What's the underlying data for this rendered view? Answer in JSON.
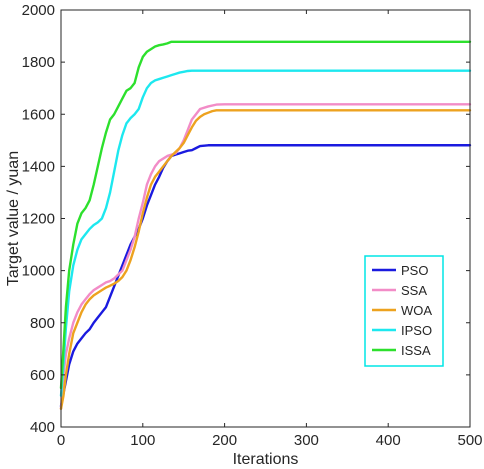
{
  "chart_data": {
    "type": "line",
    "xlabel": "Iterations",
    "ylabel": "Target value / yuan",
    "xlim": [
      0,
      500
    ],
    "ylim": [
      400,
      2000
    ],
    "xticks": [
      "0",
      "100",
      "200",
      "300",
      "400",
      "500"
    ],
    "yticks": [
      "400",
      "600",
      "800",
      "1000",
      "1200",
      "1400",
      "1600",
      "1800",
      "2000"
    ],
    "grid": false,
    "legend_position": "lower-right",
    "legend_border_color": "#00e5e5",
    "series": [
      {
        "name": "PSO",
        "color": "#1a1adf",
        "points": [
          [
            0,
            480
          ],
          [
            5,
            560
          ],
          [
            10,
            640
          ],
          [
            15,
            690
          ],
          [
            20,
            720
          ],
          [
            25,
            740
          ],
          [
            30,
            760
          ],
          [
            35,
            775
          ],
          [
            40,
            800
          ],
          [
            45,
            820
          ],
          [
            50,
            840
          ],
          [
            55,
            860
          ],
          [
            60,
            900
          ],
          [
            65,
            940
          ],
          [
            70,
            980
          ],
          [
            75,
            1020
          ],
          [
            80,
            1060
          ],
          [
            85,
            1100
          ],
          [
            90,
            1130
          ],
          [
            95,
            1160
          ],
          [
            100,
            1200
          ],
          [
            105,
            1250
          ],
          [
            110,
            1290
          ],
          [
            115,
            1330
          ],
          [
            120,
            1360
          ],
          [
            125,
            1395
          ],
          [
            130,
            1420
          ],
          [
            135,
            1440
          ],
          [
            140,
            1445
          ],
          [
            145,
            1450
          ],
          [
            150,
            1455
          ],
          [
            155,
            1460
          ],
          [
            160,
            1462
          ],
          [
            165,
            1470
          ],
          [
            170,
            1478
          ],
          [
            180,
            1481
          ],
          [
            200,
            1481
          ],
          [
            300,
            1481
          ],
          [
            400,
            1481
          ],
          [
            500,
            1481
          ]
        ]
      },
      {
        "name": "SSA",
        "color": "#f28cc7",
        "points": [
          [
            0,
            470
          ],
          [
            3,
            600
          ],
          [
            6,
            680
          ],
          [
            10,
            740
          ],
          [
            15,
            800
          ],
          [
            20,
            840
          ],
          [
            25,
            870
          ],
          [
            30,
            890
          ],
          [
            35,
            910
          ],
          [
            40,
            925
          ],
          [
            45,
            935
          ],
          [
            50,
            945
          ],
          [
            55,
            955
          ],
          [
            60,
            960
          ],
          [
            65,
            970
          ],
          [
            70,
            985
          ],
          [
            75,
            1000
          ],
          [
            80,
            1040
          ],
          [
            85,
            1080
          ],
          [
            90,
            1130
          ],
          [
            95,
            1200
          ],
          [
            100,
            1260
          ],
          [
            105,
            1330
          ],
          [
            110,
            1370
          ],
          [
            115,
            1400
          ],
          [
            120,
            1420
          ],
          [
            125,
            1430
          ],
          [
            130,
            1440
          ],
          [
            135,
            1445
          ],
          [
            140,
            1450
          ],
          [
            145,
            1470
          ],
          [
            150,
            1500
          ],
          [
            155,
            1540
          ],
          [
            160,
            1580
          ],
          [
            165,
            1600
          ],
          [
            170,
            1620
          ],
          [
            180,
            1630
          ],
          [
            190,
            1637
          ],
          [
            200,
            1638
          ],
          [
            300,
            1638
          ],
          [
            400,
            1638
          ],
          [
            500,
            1638
          ]
        ]
      },
      {
        "name": "WOA",
        "color": "#eda21f",
        "points": [
          [
            0,
            470
          ],
          [
            3,
            520
          ],
          [
            6,
            600
          ],
          [
            10,
            680
          ],
          [
            15,
            760
          ],
          [
            20,
            800
          ],
          [
            25,
            840
          ],
          [
            30,
            870
          ],
          [
            35,
            890
          ],
          [
            40,
            905
          ],
          [
            45,
            915
          ],
          [
            50,
            925
          ],
          [
            55,
            935
          ],
          [
            60,
            942
          ],
          [
            65,
            950
          ],
          [
            70,
            960
          ],
          [
            75,
            975
          ],
          [
            80,
            1000
          ],
          [
            85,
            1040
          ],
          [
            90,
            1090
          ],
          [
            95,
            1150
          ],
          [
            100,
            1220
          ],
          [
            105,
            1280
          ],
          [
            110,
            1330
          ],
          [
            115,
            1360
          ],
          [
            120,
            1380
          ],
          [
            125,
            1400
          ],
          [
            130,
            1420
          ],
          [
            135,
            1440
          ],
          [
            140,
            1455
          ],
          [
            145,
            1470
          ],
          [
            150,
            1490
          ],
          [
            155,
            1520
          ],
          [
            160,
            1550
          ],
          [
            165,
            1575
          ],
          [
            170,
            1590
          ],
          [
            175,
            1600
          ],
          [
            180,
            1606
          ],
          [
            185,
            1612
          ],
          [
            190,
            1615
          ],
          [
            200,
            1615
          ],
          [
            300,
            1615
          ],
          [
            400,
            1615
          ],
          [
            500,
            1615
          ]
        ]
      },
      {
        "name": "IPSO",
        "color": "#1de8ef",
        "points": [
          [
            0,
            520
          ],
          [
            3,
            640
          ],
          [
            6,
            780
          ],
          [
            10,
            920
          ],
          [
            15,
            1020
          ],
          [
            20,
            1080
          ],
          [
            25,
            1120
          ],
          [
            30,
            1140
          ],
          [
            35,
            1160
          ],
          [
            40,
            1175
          ],
          [
            45,
            1185
          ],
          [
            50,
            1200
          ],
          [
            55,
            1240
          ],
          [
            60,
            1300
          ],
          [
            65,
            1380
          ],
          [
            70,
            1460
          ],
          [
            75,
            1520
          ],
          [
            80,
            1565
          ],
          [
            85,
            1585
          ],
          [
            90,
            1600
          ],
          [
            95,
            1620
          ],
          [
            100,
            1665
          ],
          [
            105,
            1700
          ],
          [
            110,
            1720
          ],
          [
            115,
            1730
          ],
          [
            120,
            1735
          ],
          [
            125,
            1740
          ],
          [
            130,
            1745
          ],
          [
            135,
            1750
          ],
          [
            140,
            1755
          ],
          [
            145,
            1760
          ],
          [
            150,
            1763
          ],
          [
            155,
            1766
          ],
          [
            160,
            1767
          ],
          [
            200,
            1767
          ],
          [
            300,
            1767
          ],
          [
            400,
            1767
          ],
          [
            500,
            1767
          ]
        ]
      },
      {
        "name": "ISSA",
        "color": "#2de02d",
        "points": [
          [
            0,
            550
          ],
          [
            3,
            700
          ],
          [
            6,
            860
          ],
          [
            10,
            1000
          ],
          [
            15,
            1100
          ],
          [
            20,
            1180
          ],
          [
            25,
            1220
          ],
          [
            30,
            1240
          ],
          [
            35,
            1270
          ],
          [
            40,
            1330
          ],
          [
            45,
            1400
          ],
          [
            50,
            1470
          ],
          [
            55,
            1530
          ],
          [
            60,
            1580
          ],
          [
            65,
            1600
          ],
          [
            70,
            1630
          ],
          [
            75,
            1660
          ],
          [
            80,
            1690
          ],
          [
            85,
            1700
          ],
          [
            90,
            1720
          ],
          [
            95,
            1780
          ],
          [
            100,
            1820
          ],
          [
            105,
            1840
          ],
          [
            110,
            1850
          ],
          [
            115,
            1860
          ],
          [
            120,
            1865
          ],
          [
            125,
            1868
          ],
          [
            130,
            1872
          ],
          [
            135,
            1878
          ],
          [
            140,
            1878
          ],
          [
            200,
            1878
          ],
          [
            300,
            1878
          ],
          [
            400,
            1878
          ],
          [
            500,
            1878
          ]
        ]
      }
    ]
  }
}
